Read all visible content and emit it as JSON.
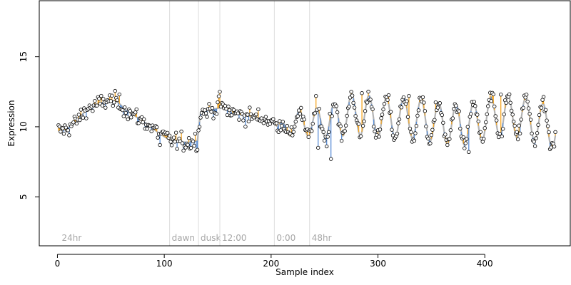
{
  "chart_data": {
    "type": "scatter",
    "title": "",
    "xlabel": "Sample index",
    "ylabel": "Expression",
    "xlim": [
      -17,
      480
    ],
    "ylim": [
      1.5,
      19.0
    ],
    "xticks": [
      0,
      100,
      200,
      300,
      400
    ],
    "yticks": [
      5,
      10,
      15
    ],
    "grid": false,
    "colors": {
      "fit_line": "#b3b3b3",
      "residual_up": "#f5a623",
      "residual_down": "#5b8fd6",
      "point_fill": "#ffffff",
      "point_stroke": "#000000",
      "phase_line": "#dcdcdc",
      "phase_text": "#a6a6a6"
    },
    "phase_markers": [
      {
        "x": 2,
        "label": "24hr",
        "line": false
      },
      {
        "x": 105,
        "label": "dawn",
        "line": true
      },
      {
        "x": 132,
        "label": "dusk",
        "line": true
      },
      {
        "x": 152,
        "label": "12:00",
        "line": true
      },
      {
        "x": 203,
        "label": "0:00",
        "line": true
      },
      {
        "x": 236,
        "label": "48hr",
        "line": true
      }
    ],
    "anchors": [
      [
        0,
        9.7
      ],
      [
        8,
        9.8
      ],
      [
        18,
        10.4
      ],
      [
        28,
        11.3
      ],
      [
        38,
        11.6
      ],
      [
        48,
        11.9
      ],
      [
        56,
        11.8
      ],
      [
        64,
        11.2
      ],
      [
        74,
        10.7
      ],
      [
        84,
        10.2
      ],
      [
        94,
        9.6
      ],
      [
        104,
        9.1
      ],
      [
        114,
        8.9
      ],
      [
        124,
        8.9
      ],
      [
        131,
        9.0
      ],
      [
        134,
        11.0
      ],
      [
        144,
        11.2
      ],
      [
        154,
        11.4
      ],
      [
        164,
        11.0
      ],
      [
        174,
        10.8
      ],
      [
        184,
        10.7
      ],
      [
        194,
        10.6
      ],
      [
        202,
        10.3
      ],
      [
        210,
        9.7
      ],
      [
        218,
        10.0
      ],
      [
        226,
        10.4
      ],
      [
        236,
        10.2
      ],
      [
        246,
        10.3
      ],
      [
        260,
        10.5
      ],
      [
        275,
        10.9
      ],
      [
        290,
        10.8
      ],
      [
        305,
        10.6
      ],
      [
        320,
        10.7
      ],
      [
        335,
        10.6
      ],
      [
        350,
        10.4
      ],
      [
        365,
        10.2
      ],
      [
        380,
        10.1
      ],
      [
        395,
        10.4
      ],
      [
        410,
        10.8
      ],
      [
        425,
        10.7
      ],
      [
        440,
        10.6
      ],
      [
        455,
        10.2
      ],
      [
        466,
        9.8
      ]
    ],
    "oscillation": {
      "start_x": 206,
      "period": 16.3,
      "amplitude_start": 0.5,
      "amplitude_end": 1.45,
      "ramp_end_x": 275
    },
    "n_points": 466,
    "noise_sd": 0.55,
    "outliers": [
      {
        "x": 256,
        "y": 7.7
      },
      {
        "x": 252,
        "y": 8.6
      },
      {
        "x": 244,
        "y": 8.5
      },
      {
        "x": 385,
        "y": 8.2
      },
      {
        "x": 118,
        "y": 8.3
      },
      {
        "x": 242,
        "y": 12.2
      },
      {
        "x": 275,
        "y": 12.5
      },
      {
        "x": 285,
        "y": 12.4
      },
      {
        "x": 415,
        "y": 12.3
      },
      {
        "x": 152,
        "y": 12.5
      },
      {
        "x": 329,
        "y": 12.2
      },
      {
        "x": 461,
        "y": 8.4
      },
      {
        "x": 96,
        "y": 8.7
      },
      {
        "x": 266,
        "y": 9.0
      }
    ]
  }
}
